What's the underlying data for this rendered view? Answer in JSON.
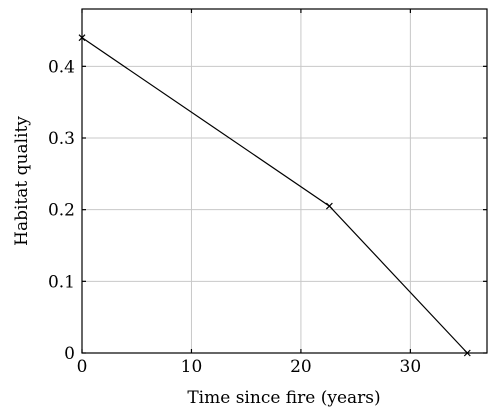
{
  "chart_data": {
    "type": "line",
    "xlabel": "Time since fire (years)",
    "ylabel": "Habitat quality",
    "xlim": [
      0,
      37
    ],
    "ylim": [
      0,
      0.48
    ],
    "xticks": [
      0,
      10,
      20,
      30
    ],
    "yticks": [
      0,
      0.1,
      0.2,
      0.3,
      0.4
    ],
    "xtick_labels": [
      "0",
      "10",
      "20",
      "30"
    ],
    "ytick_labels": [
      "0",
      "0.1",
      "0.2",
      "0.3",
      "0.4"
    ],
    "grid": true,
    "series": [
      {
        "x": [
          0,
          22.6,
          35.2
        ],
        "y": [
          0.44,
          0.205,
          0.0
        ],
        "marker": "x",
        "color": "#000000"
      }
    ]
  }
}
